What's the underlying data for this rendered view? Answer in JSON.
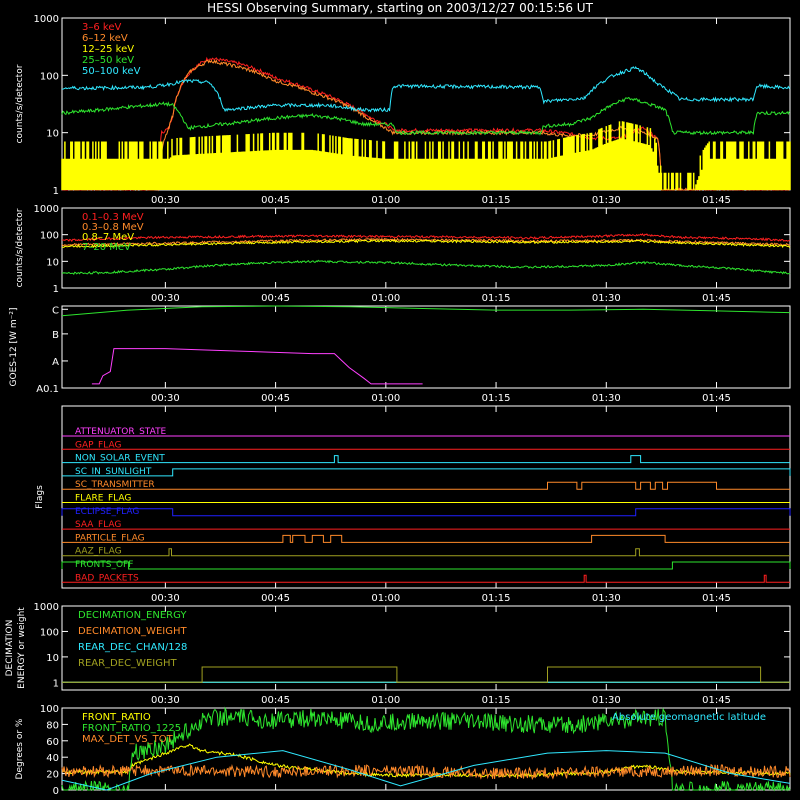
{
  "title": "HESSI Observing Summary, starting on 2003/12/27 00:15:56 UT",
  "time_ticks": [
    "00:30",
    "00:45",
    "01:00",
    "01:15",
    "01:30",
    "01:45"
  ],
  "colors": {
    "frame": "#ffffff",
    "red": "#ff2020",
    "orange": "#ff8a2a",
    "yellow": "#ffff00",
    "green": "#2ee52e",
    "cyan": "#30e8ff",
    "magenta": "#ff40ff",
    "blue": "#2020ff",
    "olive": "#a0a020",
    "darkred": "#d02020"
  },
  "chart_data": [
    {
      "type": "line",
      "panel": "lightcurves-low",
      "ylabel": "counts/s/detector",
      "yscale": "log",
      "ylim": [
        1,
        1000
      ],
      "yticks": [
        "1",
        "10",
        "100",
        "1000"
      ],
      "xlim": [
        "00:15:56",
        "01:55:00"
      ],
      "series": [
        {
          "name": "3–6 keV",
          "color": "red",
          "x": [
            "00:15:56",
            "00:29:00",
            "00:29:30",
            "00:30:30",
            "00:31:00",
            "00:33:30",
            "00:36:00",
            "00:40:00",
            "00:45:00",
            "00:50:00",
            "00:55:00",
            "00:58:00",
            "01:00:00",
            "01:01:00",
            "01:10:00",
            "01:21:00",
            "01:24:00",
            "01:28:00",
            "01:32:00",
            "01:35:00",
            "01:37:00",
            "01:37:30",
            "01:55:00"
          ],
          "y": [
            1,
            1,
            10,
            12,
            20,
            120,
            200,
            160,
            90,
            55,
            30,
            18,
            14,
            11,
            11,
            11,
            10,
            8,
            8,
            12,
            8,
            1,
            1
          ]
        },
        {
          "name": "6–12 keV",
          "color": "orange",
          "x": [
            "00:15:56",
            "00:29:00",
            "00:30:30",
            "00:31:00",
            "00:33:30",
            "00:36:00",
            "00:40:00",
            "00:45:00",
            "00:50:00",
            "00:55:00",
            "00:58:00",
            "01:00:00",
            "01:01:00",
            "01:10:00",
            "01:21:00",
            "01:24:00",
            "01:28:00",
            "01:32:00",
            "01:35:00",
            "01:37:00",
            "01:37:30",
            "01:55:00"
          ],
          "y": [
            1,
            1,
            12,
            20,
            120,
            180,
            140,
            80,
            50,
            28,
            16,
            12,
            10,
            10,
            10,
            9,
            9,
            12,
            10,
            8,
            1,
            1
          ]
        },
        {
          "name": "12–25 keV",
          "color": "yellow",
          "x": [
            "00:15:56",
            "00:30:30",
            "00:31:00",
            "00:45:00",
            "00:50:00",
            "00:55:00",
            "01:00:00",
            "01:10:00",
            "01:22:00",
            "01:28:00",
            "01:32:00",
            "01:36:00",
            "01:37:30",
            "01:42:00",
            "01:44:00",
            "01:55:00"
          ],
          "y": [
            3.5,
            3.5,
            4,
            5,
            5,
            4,
            3.5,
            3.5,
            3.5,
            5,
            8,
            6,
            1,
            1,
            3.5,
            3.5
          ]
        },
        {
          "name": "25–50 keV",
          "color": "green",
          "x": [
            "00:15:56",
            "00:20:00",
            "00:25:00",
            "00:28:00",
            "00:30:00",
            "00:31:00",
            "00:33:00",
            "00:40:00",
            "00:45:00",
            "00:50:00",
            "00:53:00",
            "00:57:00",
            "01:01:00",
            "01:01:30",
            "01:21:00",
            "01:21:30",
            "01:25:00",
            "01:28:00",
            "01:33:00",
            "01:38:00",
            "01:39:00",
            "01:50:00",
            "01:50:30",
            "01:55:00"
          ],
          "y": [
            22,
            24,
            28,
            30,
            32,
            30,
            12,
            15,
            18,
            20,
            18,
            14,
            14,
            10,
            10,
            13,
            14,
            18,
            40,
            25,
            10,
            10,
            22,
            22
          ]
        },
        {
          "name": "50–100 keV",
          "color": "cyan",
          "x": [
            "00:15:56",
            "00:20:00",
            "00:27:00",
            "00:29:00",
            "00:30:30",
            "00:33:00",
            "00:36:00",
            "00:38:00",
            "00:45:00",
            "00:52:00",
            "00:57:00",
            "01:00:30",
            "01:01:00",
            "01:21:00",
            "01:21:30",
            "01:27:00",
            "01:31:00",
            "01:34:00",
            "01:37:00",
            "01:40:00",
            "01:41:00",
            "01:50:00",
            "01:50:30",
            "01:55:00"
          ],
          "y": [
            60,
            60,
            62,
            65,
            70,
            80,
            75,
            25,
            30,
            30,
            25,
            25,
            65,
            62,
            35,
            40,
            100,
            135,
            70,
            38,
            38,
            38,
            65,
            60
          ]
        }
      ]
    },
    {
      "type": "line",
      "panel": "lightcurves-high",
      "ylabel": "counts/s/detector",
      "yscale": "log",
      "ylim": [
        1,
        1000
      ],
      "yticks": [
        "1",
        "10",
        "100",
        "1000"
      ],
      "xlim": [
        "00:15:56",
        "01:55:00"
      ],
      "series": [
        {
          "name": "0.1–0.3 MeV",
          "color": "red",
          "x": [
            "00:15:56",
            "00:22:00",
            "00:30:00",
            "00:40:00",
            "00:50:00",
            "01:00:00",
            "01:10:00",
            "01:20:00",
            "01:30:00",
            "01:35:00",
            "01:40:00",
            "01:50:00",
            "01:55:00"
          ],
          "y": [
            60,
            70,
            80,
            85,
            90,
            85,
            82,
            75,
            90,
            100,
            80,
            70,
            60
          ]
        },
        {
          "name": "0.3–0.8 MeV",
          "color": "orange",
          "x": [
            "00:15:56",
            "00:22:00",
            "00:30:00",
            "00:40:00",
            "00:50:00",
            "01:00:00",
            "01:10:00",
            "01:20:00",
            "01:30:00",
            "01:35:00",
            "01:40:00",
            "01:50:00",
            "01:55:00"
          ],
          "y": [
            42,
            44,
            48,
            55,
            62,
            66,
            63,
            58,
            60,
            62,
            55,
            46,
            42
          ]
        },
        {
          "name": "0.8–7 MeV",
          "color": "yellow",
          "x": [
            "00:15:56",
            "00:22:00",
            "00:30:00",
            "00:40:00",
            "00:50:00",
            "01:00:00",
            "01:10:00",
            "01:20:00",
            "01:30:00",
            "01:35:00",
            "01:40:00",
            "01:50:00",
            "01:55:00"
          ],
          "y": [
            36,
            38,
            42,
            48,
            54,
            58,
            56,
            52,
            54,
            56,
            50,
            40,
            36
          ]
        },
        {
          "name": "7–20 MeV",
          "color": "green",
          "x": [
            "00:15:56",
            "00:22:00",
            "00:30:00",
            "00:40:00",
            "00:50:00",
            "01:00:00",
            "01:10:00",
            "01:20:00",
            "01:30:00",
            "01:35:00",
            "01:40:00",
            "01:50:00",
            "01:55:00"
          ],
          "y": [
            3.5,
            3.8,
            5,
            8,
            10,
            9,
            7,
            6,
            7,
            9,
            7,
            4.5,
            3.5
          ]
        }
      ]
    },
    {
      "type": "line",
      "panel": "goes",
      "ylabel": "GOES-12 [W m⁻²]",
      "ylim": [
        "A0.1",
        "C"
      ],
      "yticks": [
        "A0.1",
        "A",
        "B",
        "C"
      ],
      "xlim": [
        "00:15:56",
        "01:55:00"
      ],
      "series": [
        {
          "color": "green",
          "x": [
            "00:15:56",
            "00:25:00",
            "00:35:00",
            "00:45:00",
            "00:55:00",
            "01:05:00",
            "01:15:00",
            "01:25:00",
            "01:35:00",
            "01:45:00",
            "01:55:00"
          ],
          "y": [
            0.88,
            0.95,
            0.99,
            1.0,
            0.99,
            0.97,
            0.95,
            0.95,
            0.96,
            0.94,
            0.92
          ]
        },
        {
          "color": "magenta",
          "x": [
            "00:20:00",
            "00:21:00",
            "00:21:30",
            "00:22:30",
            "00:23:00",
            "00:30:00",
            "00:40:00",
            "00:50:00",
            "00:53:00",
            "00:55:00",
            "00:57:00",
            "00:58:00",
            "01:05:00"
          ],
          "y": [
            0.05,
            0.05,
            0.15,
            0.2,
            0.48,
            0.48,
            0.45,
            0.42,
            0.42,
            0.25,
            0.12,
            0.05,
            0.05
          ]
        }
      ]
    },
    {
      "type": "line",
      "panel": "flags",
      "ylabel": "Flags",
      "xlim": [
        "00:15:56",
        "01:55:00"
      ],
      "flags": [
        {
          "name": "ATTENUATOR_STATE",
          "color": "magenta",
          "on": []
        },
        {
          "name": "GAP_FLAG",
          "color": "red",
          "on": []
        },
        {
          "name": "NON_SOLAR_EVENT",
          "color": "cyan",
          "on": [
            [
              "00:53:00",
              "00:53:30"
            ],
            [
              "01:33:20",
              "01:34:40"
            ]
          ]
        },
        {
          "name": "SC_IN_SUNLIGHT",
          "color": "cyan",
          "on": [
            [
              "00:31:00",
              "01:55:00"
            ]
          ]
        },
        {
          "name": "SC_TRANSMITTER",
          "color": "orange",
          "on": [
            [
              "01:22:00",
              "01:26:00"
            ],
            [
              "01:26:40",
              "01:34:00"
            ],
            [
              "01:34:40",
              "01:36:00"
            ],
            [
              "01:36:40",
              "01:37:40"
            ],
            [
              "01:38:20",
              "01:45:00"
            ]
          ]
        },
        {
          "name": "FLARE_FLAG",
          "color": "yellow",
          "on": []
        },
        {
          "name": "ECLIPSE_FLAG",
          "color": "blue",
          "on": [
            [
              "00:15:56",
              "00:31:00"
            ],
            [
              "01:34:00",
              "01:55:00"
            ]
          ]
        },
        {
          "name": "SAA_FLAG",
          "color": "red",
          "on": []
        },
        {
          "name": "PARTICLE_FLAG",
          "color": "orange",
          "on": [
            [
              "00:46:00",
              "00:47:00"
            ],
            [
              "00:47:20",
              "00:49:00"
            ],
            [
              "00:50:00",
              "00:51:30"
            ],
            [
              "00:52:30",
              "00:54:00"
            ],
            [
              "01:28:00",
              "01:38:00"
            ]
          ]
        },
        {
          "name": "AAZ_FLAG",
          "color": "olive",
          "on": [
            [
              "00:30:30",
              "00:30:50"
            ],
            [
              "01:34:00",
              "01:34:30"
            ]
          ]
        },
        {
          "name": "FRONTS_OFF",
          "color": "green",
          "on": [
            [
              "00:15:56",
              "00:25:00"
            ],
            [
              "01:39:00",
              "01:55:00"
            ]
          ]
        },
        {
          "name": "BAD_PACKETS",
          "color": "red",
          "on": [
            [
              "01:27:00",
              "01:27:15"
            ],
            [
              "01:51:30",
              "01:51:45"
            ]
          ]
        }
      ]
    },
    {
      "type": "line",
      "panel": "decimation",
      "ylabel": "DECIMATION ENERGY or weight",
      "yscale": "log",
      "ylim": [
        0.5,
        1000
      ],
      "yticks": [
        "1",
        "10",
        "100",
        "1000"
      ],
      "xlim": [
        "00:15:56",
        "01:55:00"
      ],
      "series": [
        {
          "name": "DECIMATION_ENERGY",
          "color": "green",
          "x": [
            "00:15:56",
            "01:55:00"
          ],
          "y": [
            1,
            1
          ]
        },
        {
          "name": "DECIMATION_WEIGHT",
          "color": "orange",
          "x": [
            "00:15:56",
            "01:55:00"
          ],
          "y": [
            1,
            1
          ]
        },
        {
          "name": "REAR_DEC_CHAN/128",
          "color": "cyan",
          "x": [
            "00:15:56",
            "01:55:00"
          ],
          "y": [
            1,
            1
          ]
        },
        {
          "name": "REAR_DEC_WEIGHT",
          "color": "olive",
          "x": [
            "00:15:56",
            "00:35:00",
            "00:35:00",
            "01:01:30",
            "01:01:30",
            "01:22:00",
            "01:22:00",
            "01:51:00",
            "01:51:00",
            "01:55:00"
          ],
          "y": [
            1,
            1,
            4,
            4,
            1,
            1,
            4,
            4,
            1,
            1
          ]
        }
      ]
    },
    {
      "type": "line",
      "panel": "ratios",
      "ylabel": "Degrees or %",
      "ylim": [
        0,
        100
      ],
      "yticks": [
        "0",
        "20",
        "40",
        "60",
        "80",
        "100"
      ],
      "xlim": [
        "00:15:56",
        "01:55:00"
      ],
      "annotation": "Absolute geomagnetic latitude",
      "series": [
        {
          "name": "FRONT_RATIO",
          "color": "yellow",
          "x": [
            "00:15:56",
            "00:25:00",
            "00:25:30",
            "00:33:00",
            "00:35:00",
            "00:40:00",
            "00:45:00",
            "00:55:00",
            "01:00:00",
            "01:10:00",
            "01:20:00",
            "01:30:00",
            "01:35:00",
            "01:40:00",
            "01:55:00"
          ],
          "y": [
            22,
            22,
            30,
            55,
            48,
            42,
            30,
            20,
            18,
            18,
            18,
            22,
            30,
            22,
            20
          ]
        },
        {
          "name": "FRONT_RATIO_1225",
          "color": "green",
          "x": [
            "00:15:56",
            "00:25:00",
            "00:25:30",
            "00:30:00",
            "00:34:00",
            "00:36:00",
            "00:45:00",
            "00:50:00",
            "00:58:00",
            "01:05:00",
            "01:15:00",
            "01:25:00",
            "01:30:00",
            "01:38:00",
            "01:39:00",
            "01:55:00"
          ],
          "y": [
            0,
            0,
            45,
            55,
            78,
            90,
            85,
            88,
            80,
            85,
            82,
            78,
            85,
            88,
            0,
            0
          ]
        },
        {
          "name": "MAX_DET_VS_TOT",
          "color": "orange",
          "x": [
            "00:15:56",
            "00:30:00",
            "00:45:00",
            "01:00:00",
            "01:15:00",
            "01:30:00",
            "01:45:00",
            "01:55:00"
          ],
          "y": [
            22,
            24,
            22,
            24,
            20,
            22,
            24,
            22
          ]
        },
        {
          "name": "Absolute geomagnetic latitude",
          "color": "cyan",
          "x": [
            "00:15:56",
            "00:22:00",
            "00:28:00",
            "00:37:00",
            "00:46:00",
            "00:55:00",
            "01:02:00",
            "01:12:00",
            "01:22:00",
            "01:30:00",
            "01:38:00",
            "01:47:00",
            "01:55:00"
          ],
          "y": [
            12,
            0,
            20,
            40,
            48,
            25,
            5,
            30,
            45,
            48,
            45,
            20,
            8
          ]
        }
      ]
    }
  ]
}
